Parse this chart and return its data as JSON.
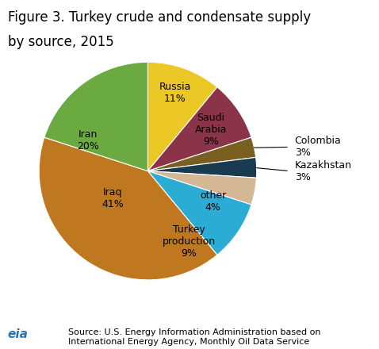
{
  "title_line1": "Figure 3. Turkey crude and condensate supply",
  "title_line2": "by source, 2015",
  "slices": [
    {
      "label": "Russia\n11%",
      "value": 11,
      "color": "#ECC827"
    },
    {
      "label": "Saudi\nArabia\n9%",
      "value": 9,
      "color": "#8B3348"
    },
    {
      "label": "Colombia\n3%",
      "value": 3,
      "color": "#7A6020"
    },
    {
      "label": "Kazakhstan\n3%",
      "value": 3,
      "color": "#1A3A50"
    },
    {
      "label": "other\n4%",
      "value": 4,
      "color": "#D4B896"
    },
    {
      "label": "Turkey\nproduction\n9%",
      "value": 9,
      "color": "#2BACD4"
    },
    {
      "label": "Iraq\n41%",
      "value": 41,
      "color": "#C07820"
    },
    {
      "label": "Iran\n20%",
      "value": 20,
      "color": "#6AAA40"
    }
  ],
  "source_text": "Source: U.S. Energy Information Administration based on\nInternational Energy Agency, Monthly Oil Data Service",
  "title_fontsize": 12,
  "label_fontsize": 9,
  "source_fontsize": 8
}
